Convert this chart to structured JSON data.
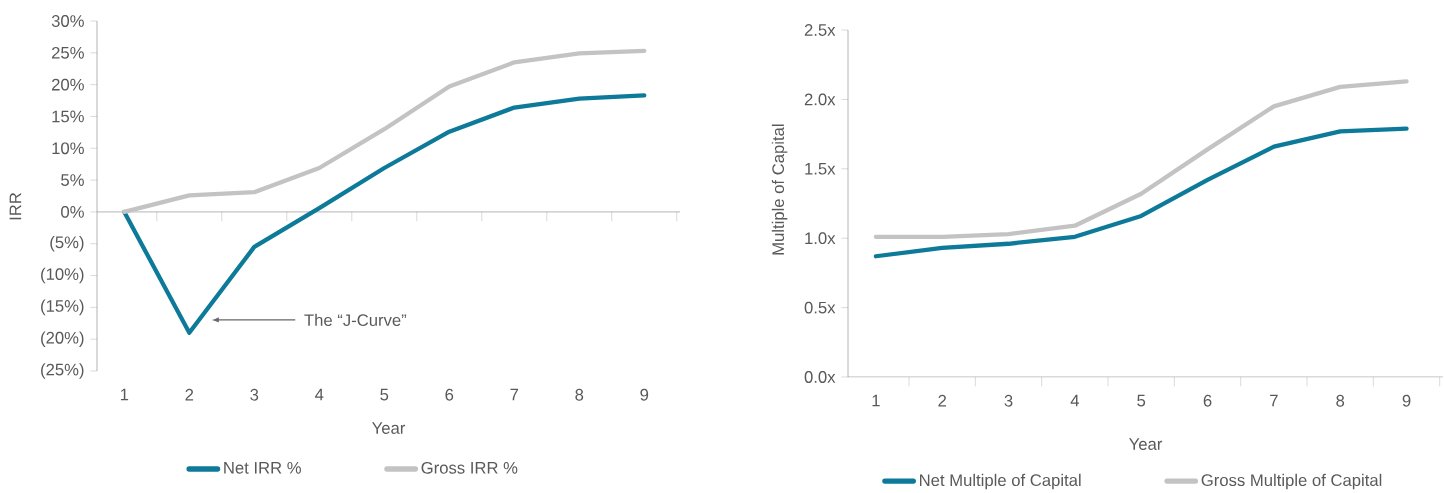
{
  "chart_data": [
    {
      "type": "line",
      "xlabel": "Year",
      "ylabel": "IRR",
      "categories": [
        "1",
        "2",
        "3",
        "4",
        "5",
        "6",
        "7",
        "8",
        "9"
      ],
      "series": [
        {
          "name": "Net IRR %",
          "color": "#0e7a99",
          "values": [
            0,
            -19,
            -5.5,
            0.6,
            6.9,
            12.6,
            16.4,
            17.8,
            18.3
          ]
        },
        {
          "name": "Gross IRR %",
          "color": "#c3c3c3",
          "values": [
            0,
            2.6,
            3.1,
            6.9,
            13,
            19.7,
            23.5,
            24.9,
            25.3
          ]
        }
      ],
      "ylim": [
        -25,
        30
      ],
      "yticks": [
        {
          "value": -25,
          "label": "(25%)"
        },
        {
          "value": -20,
          "label": "(20%)"
        },
        {
          "value": -15,
          "label": "(15%)"
        },
        {
          "value": -10,
          "label": "(10%)"
        },
        {
          "value": -5,
          "label": "(5%)"
        },
        {
          "value": 0,
          "label": "0%"
        },
        {
          "value": 5,
          "label": "5%"
        },
        {
          "value": 10,
          "label": "10%"
        },
        {
          "value": 15,
          "label": "15%"
        },
        {
          "value": 20,
          "label": "20%"
        },
        {
          "value": 25,
          "label": "25%"
        },
        {
          "value": 30,
          "label": "30%"
        }
      ],
      "annotations": [
        "The “J-Curve”"
      ],
      "legend": "bottom",
      "marker": "none",
      "line_style": "solid"
    },
    {
      "type": "line",
      "xlabel": "Year",
      "ylabel": "Multiple of Capital",
      "categories": [
        "1",
        "2",
        "3",
        "4",
        "5",
        "6",
        "7",
        "8",
        "9"
      ],
      "series": [
        {
          "name": "Net Multiple of Capital",
          "color": "#0e7a99",
          "values": [
            0.87,
            0.93,
            0.96,
            1.01,
            1.16,
            1.42,
            1.66,
            1.77,
            1.79
          ]
        },
        {
          "name": "Gross Multiple of Capital",
          "color": "#c3c3c3",
          "values": [
            1.01,
            1.01,
            1.03,
            1.09,
            1.32,
            1.64,
            1.95,
            2.09,
            2.13
          ]
        }
      ],
      "ylim": [
        0,
        2.5
      ],
      "yticks": [
        {
          "value": 0,
          "label": "0.0x"
        },
        {
          "value": 0.5,
          "label": "0.5x"
        },
        {
          "value": 1,
          "label": "1.0x"
        },
        {
          "value": 1.5,
          "label": "1.5x"
        },
        {
          "value": 2,
          "label": "2.0x"
        },
        {
          "value": 2.5,
          "label": "2.5x"
        }
      ],
      "legend": "bottom",
      "marker": "none",
      "line_style": "solid"
    }
  ]
}
